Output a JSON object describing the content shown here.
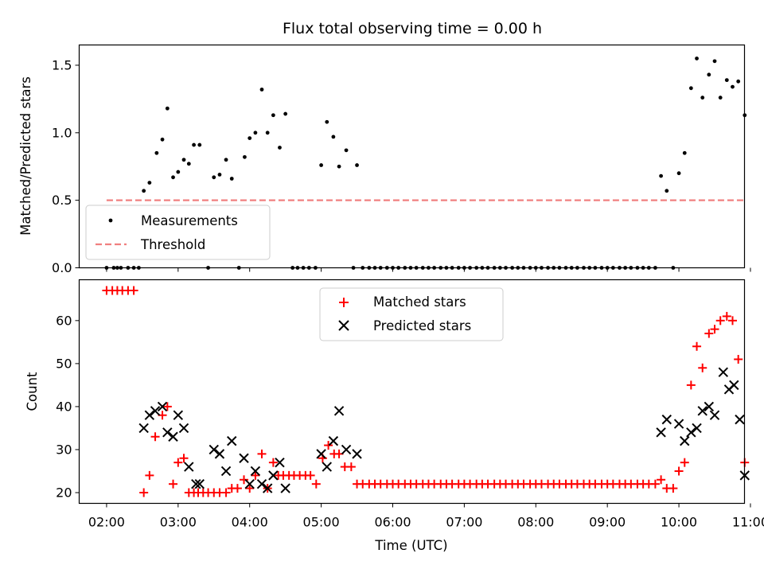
{
  "title": "Flux total observing time = 0.00 h",
  "x_tick_labels": [
    "02:00",
    "03:00",
    "04:00",
    "05:00",
    "06:00",
    "07:00",
    "08:00",
    "09:00",
    "10:00",
    "11:00"
  ],
  "chart_data": [
    {
      "name": "ratio-panel",
      "type": "scatter",
      "xlabel": "",
      "ylabel": "Matched/Predicted stars",
      "x_unit": "hours UTC",
      "xlim": [
        1.617,
        10.917
      ],
      "ylim": [
        0.0,
        1.65
      ],
      "y_ticks": [
        0.0,
        0.5,
        1.0,
        1.5
      ],
      "y_tick_labels": [
        "0.0",
        "0.5",
        "1.0",
        "1.5"
      ],
      "legend": {
        "placement": "lower-left"
      },
      "series": [
        {
          "name": "Measurements",
          "kind": "points",
          "color": "#000000",
          "points": [
            [
              2.0,
              0
            ],
            [
              2.1,
              0
            ],
            [
              2.15,
              0
            ],
            [
              2.2,
              0
            ],
            [
              2.3,
              0
            ],
            [
              2.38,
              0
            ],
            [
              2.45,
              0
            ],
            [
              2.52,
              0.57
            ],
            [
              2.6,
              0.63
            ],
            [
              2.7,
              0.85
            ],
            [
              2.78,
              0.95
            ],
            [
              2.85,
              1.18
            ],
            [
              2.93,
              0.67
            ],
            [
              3.0,
              0.71
            ],
            [
              3.08,
              0.8
            ],
            [
              3.15,
              0.77
            ],
            [
              3.22,
              0.91
            ],
            [
              3.3,
              0.91
            ],
            [
              3.42,
              0
            ],
            [
              3.5,
              0.67
            ],
            [
              3.58,
              0.69
            ],
            [
              3.67,
              0.8
            ],
            [
              3.75,
              0.66
            ],
            [
              3.85,
              0
            ],
            [
              3.93,
              0.82
            ],
            [
              4.0,
              0.96
            ],
            [
              4.08,
              1.0
            ],
            [
              4.17,
              1.32
            ],
            [
              4.25,
              1.0
            ],
            [
              4.33,
              1.13
            ],
            [
              4.42,
              0.89
            ],
            [
              4.5,
              1.14
            ],
            [
              4.6,
              0
            ],
            [
              4.67,
              0
            ],
            [
              4.75,
              0
            ],
            [
              4.83,
              0
            ],
            [
              4.92,
              0
            ],
            [
              5.0,
              0.76
            ],
            [
              5.08,
              1.08
            ],
            [
              5.17,
              0.97
            ],
            [
              5.25,
              0.75
            ],
            [
              5.35,
              0.87
            ],
            [
              5.45,
              0
            ],
            [
              5.5,
              0.76
            ],
            [
              5.58,
              0
            ],
            [
              5.67,
              0
            ],
            [
              5.75,
              0
            ],
            [
              5.83,
              0
            ],
            [
              5.92,
              0
            ],
            [
              6.0,
              0
            ],
            [
              6.08,
              0
            ],
            [
              6.17,
              0
            ],
            [
              6.25,
              0
            ],
            [
              6.33,
              0
            ],
            [
              6.42,
              0
            ],
            [
              6.5,
              0
            ],
            [
              6.58,
              0
            ],
            [
              6.67,
              0
            ],
            [
              6.75,
              0
            ],
            [
              6.83,
              0
            ],
            [
              6.92,
              0
            ],
            [
              7.0,
              0
            ],
            [
              7.08,
              0
            ],
            [
              7.17,
              0
            ],
            [
              7.25,
              0
            ],
            [
              7.33,
              0
            ],
            [
              7.42,
              0
            ],
            [
              7.5,
              0
            ],
            [
              7.58,
              0
            ],
            [
              7.67,
              0
            ],
            [
              7.75,
              0
            ],
            [
              7.83,
              0
            ],
            [
              7.92,
              0
            ],
            [
              8.0,
              0
            ],
            [
              8.08,
              0
            ],
            [
              8.17,
              0
            ],
            [
              8.25,
              0
            ],
            [
              8.33,
              0
            ],
            [
              8.42,
              0
            ],
            [
              8.5,
              0
            ],
            [
              8.58,
              0
            ],
            [
              8.67,
              0
            ],
            [
              8.75,
              0
            ],
            [
              8.83,
              0
            ],
            [
              8.92,
              0
            ],
            [
              9.0,
              0
            ],
            [
              9.08,
              0
            ],
            [
              9.17,
              0
            ],
            [
              9.25,
              0
            ],
            [
              9.33,
              0
            ],
            [
              9.42,
              0
            ],
            [
              9.5,
              0
            ],
            [
              9.58,
              0
            ],
            [
              9.67,
              0
            ],
            [
              9.75,
              0.68
            ],
            [
              9.83,
              0.57
            ],
            [
              9.92,
              0
            ],
            [
              10.0,
              0.7
            ],
            [
              10.08,
              0.85
            ],
            [
              10.17,
              1.33
            ],
            [
              10.25,
              1.55
            ],
            [
              10.33,
              1.26
            ],
            [
              10.42,
              1.43
            ],
            [
              10.5,
              1.53
            ],
            [
              10.58,
              1.26
            ],
            [
              10.67,
              1.39
            ],
            [
              10.75,
              1.34
            ],
            [
              10.83,
              1.38
            ],
            [
              10.92,
              1.13
            ]
          ]
        },
        {
          "name": "Threshold",
          "kind": "dashed-line",
          "color": "#f08080",
          "points": [
            [
              2.0,
              0.5
            ],
            [
              10.92,
              0.5
            ]
          ]
        }
      ]
    },
    {
      "name": "count-panel",
      "type": "scatter",
      "xlabel": "Time (UTC)",
      "ylabel": "Count",
      "x_unit": "hours UTC",
      "xlim": [
        1.617,
        10.917
      ],
      "ylim": [
        17.5,
        69.5
      ],
      "y_ticks": [
        20,
        30,
        40,
        50,
        60
      ],
      "y_tick_labels": [
        "20",
        "30",
        "40",
        "50",
        "60"
      ],
      "legend": {
        "placement": "upper-center"
      },
      "series": [
        {
          "name": "Matched stars",
          "kind": "plus",
          "color": "#ff0000",
          "points": [
            [
              2.0,
              67
            ],
            [
              2.08,
              67
            ],
            [
              2.15,
              67
            ],
            [
              2.22,
              67
            ],
            [
              2.3,
              67
            ],
            [
              2.38,
              67
            ],
            [
              2.52,
              20
            ],
            [
              2.6,
              24
            ],
            [
              2.68,
              33
            ],
            [
              2.78,
              38
            ],
            [
              2.85,
              40
            ],
            [
              2.93,
              22
            ],
            [
              3.0,
              27
            ],
            [
              3.08,
              28
            ],
            [
              3.15,
              20
            ],
            [
              3.22,
              20
            ],
            [
              3.28,
              20
            ],
            [
              3.35,
              20
            ],
            [
              3.42,
              20
            ],
            [
              3.5,
              20
            ],
            [
              3.58,
              20
            ],
            [
              3.67,
              20
            ],
            [
              3.75,
              21
            ],
            [
              3.83,
              21
            ],
            [
              3.92,
              23
            ],
            [
              4.0,
              21
            ],
            [
              4.08,
              24
            ],
            [
              4.17,
              29
            ],
            [
              4.25,
              21
            ],
            [
              4.33,
              27
            ],
            [
              4.4,
              24
            ],
            [
              4.47,
              24
            ],
            [
              4.55,
              24
            ],
            [
              4.62,
              24
            ],
            [
              4.7,
              24
            ],
            [
              4.78,
              24
            ],
            [
              4.85,
              24
            ],
            [
              4.93,
              22
            ],
            [
              5.02,
              28
            ],
            [
              5.1,
              31
            ],
            [
              5.18,
              29
            ],
            [
              5.25,
              29
            ],
            [
              5.33,
              26
            ],
            [
              5.42,
              26
            ],
            [
              5.5,
              22
            ],
            [
              5.58,
              22
            ],
            [
              5.67,
              22
            ],
            [
              5.75,
              22
            ],
            [
              5.83,
              22
            ],
            [
              5.92,
              22
            ],
            [
              6.0,
              22
            ],
            [
              6.08,
              22
            ],
            [
              6.17,
              22
            ],
            [
              6.25,
              22
            ],
            [
              6.33,
              22
            ],
            [
              6.42,
              22
            ],
            [
              6.5,
              22
            ],
            [
              6.58,
              22
            ],
            [
              6.67,
              22
            ],
            [
              6.75,
              22
            ],
            [
              6.83,
              22
            ],
            [
              6.92,
              22
            ],
            [
              7.0,
              22
            ],
            [
              7.08,
              22
            ],
            [
              7.17,
              22
            ],
            [
              7.25,
              22
            ],
            [
              7.33,
              22
            ],
            [
              7.42,
              22
            ],
            [
              7.5,
              22
            ],
            [
              7.58,
              22
            ],
            [
              7.67,
              22
            ],
            [
              7.75,
              22
            ],
            [
              7.83,
              22
            ],
            [
              7.92,
              22
            ],
            [
              8.0,
              22
            ],
            [
              8.08,
              22
            ],
            [
              8.17,
              22
            ],
            [
              8.25,
              22
            ],
            [
              8.33,
              22
            ],
            [
              8.42,
              22
            ],
            [
              8.5,
              22
            ],
            [
              8.58,
              22
            ],
            [
              8.67,
              22
            ],
            [
              8.75,
              22
            ],
            [
              8.83,
              22
            ],
            [
              8.92,
              22
            ],
            [
              9.0,
              22
            ],
            [
              9.08,
              22
            ],
            [
              9.17,
              22
            ],
            [
              9.25,
              22
            ],
            [
              9.33,
              22
            ],
            [
              9.42,
              22
            ],
            [
              9.5,
              22
            ],
            [
              9.58,
              22
            ],
            [
              9.67,
              22
            ],
            [
              9.75,
              23
            ],
            [
              9.83,
              21
            ],
            [
              9.92,
              21
            ],
            [
              10.0,
              25
            ],
            [
              10.08,
              27
            ],
            [
              10.17,
              45
            ],
            [
              10.25,
              54
            ],
            [
              10.33,
              49
            ],
            [
              10.42,
              57
            ],
            [
              10.5,
              58
            ],
            [
              10.58,
              60
            ],
            [
              10.67,
              61
            ],
            [
              10.75,
              60
            ],
            [
              10.83,
              51
            ],
            [
              10.92,
              27
            ]
          ]
        },
        {
          "name": "Predicted stars",
          "kind": "cross",
          "color": "#000000",
          "points": [
            [
              2.52,
              35
            ],
            [
              2.6,
              38
            ],
            [
              2.68,
              39
            ],
            [
              2.78,
              40
            ],
            [
              2.85,
              34
            ],
            [
              2.93,
              33
            ],
            [
              3.0,
              38
            ],
            [
              3.08,
              35
            ],
            [
              3.15,
              26
            ],
            [
              3.25,
              22
            ],
            [
              3.3,
              22
            ],
            [
              3.5,
              30
            ],
            [
              3.58,
              29
            ],
            [
              3.67,
              25
            ],
            [
              3.75,
              32
            ],
            [
              3.92,
              28
            ],
            [
              4.0,
              22
            ],
            [
              4.08,
              25
            ],
            [
              4.17,
              22
            ],
            [
              4.25,
              21
            ],
            [
              4.33,
              24
            ],
            [
              4.42,
              27
            ],
            [
              4.5,
              21
            ],
            [
              5.0,
              29
            ],
            [
              5.08,
              26
            ],
            [
              5.17,
              32
            ],
            [
              5.25,
              39
            ],
            [
              5.35,
              30
            ],
            [
              5.5,
              29
            ],
            [
              9.75,
              34
            ],
            [
              9.83,
              37
            ],
            [
              10.0,
              36
            ],
            [
              10.08,
              32
            ],
            [
              10.17,
              34
            ],
            [
              10.25,
              35
            ],
            [
              10.33,
              39
            ],
            [
              10.42,
              40
            ],
            [
              10.5,
              38
            ],
            [
              10.62,
              48
            ],
            [
              10.7,
              44
            ],
            [
              10.77,
              45
            ],
            [
              10.85,
              37
            ],
            [
              10.92,
              24
            ]
          ]
        }
      ]
    }
  ]
}
